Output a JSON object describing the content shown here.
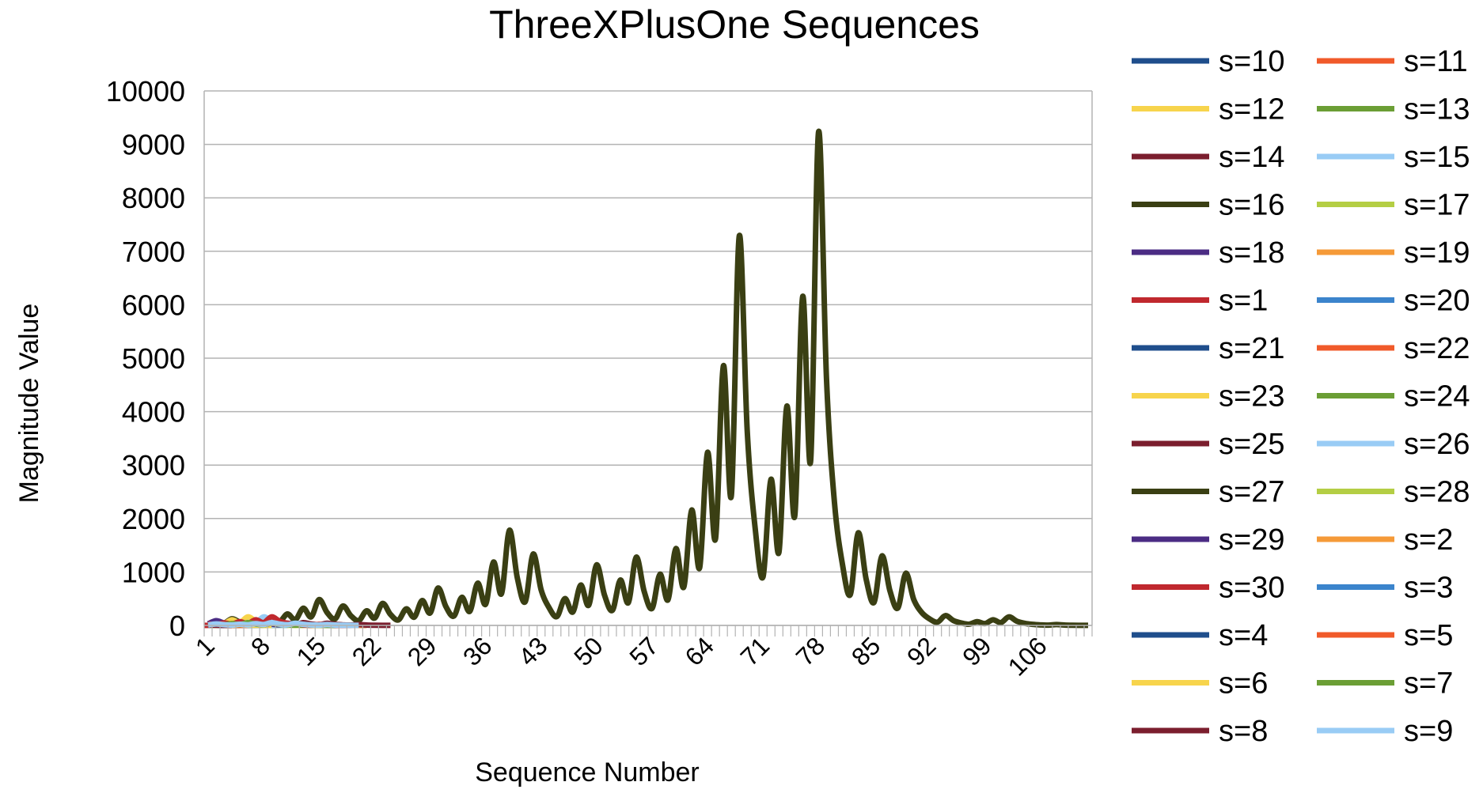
{
  "chart_data": {
    "type": "line",
    "title": "ThreeXPlusOne Sequences",
    "xlabel": "Sequence Number",
    "ylabel": "Magnitude Value",
    "ylim": [
      0,
      10000
    ],
    "yticks": [
      0,
      1000,
      2000,
      3000,
      4000,
      5000,
      6000,
      7000,
      8000,
      9000,
      10000
    ],
    "xticks": [
      "1",
      "8",
      "15",
      "22",
      "29",
      "36",
      "43",
      "50",
      "57",
      "64",
      "71",
      "78",
      "85",
      "92",
      "99",
      "106"
    ],
    "x_count": 112,
    "grid": true,
    "legend_position": "right",
    "series": [
      {
        "name": "s=10",
        "color": "#1f4e8c",
        "values": [
          10,
          5,
          16,
          8,
          4,
          2,
          1
        ]
      },
      {
        "name": "s=11",
        "color": "#f05a2a",
        "values": [
          11,
          34,
          17,
          52,
          26,
          13,
          40,
          20,
          10,
          5,
          16,
          8,
          4,
          2,
          1
        ]
      },
      {
        "name": "s=12",
        "color": "#f7d44c",
        "values": [
          12,
          6,
          3,
          10,
          5,
          16,
          8,
          4,
          2,
          1
        ]
      },
      {
        "name": "s=13",
        "color": "#6b9e35",
        "values": [
          13,
          40,
          20,
          10,
          5,
          16,
          8,
          4,
          2,
          1
        ]
      },
      {
        "name": "s=14",
        "color": "#7b1e2e",
        "values": [
          14,
          7,
          22,
          11,
          34,
          17,
          52,
          26,
          13,
          40,
          20,
          10,
          5,
          16,
          8,
          4,
          2,
          1
        ]
      },
      {
        "name": "s=15",
        "color": "#99ccf5",
        "values": [
          15,
          46,
          23,
          70,
          35,
          106,
          53,
          160,
          80,
          40,
          20,
          10,
          5,
          16,
          8,
          4,
          2,
          1
        ]
      },
      {
        "name": "s=16",
        "color": "#3a3f13",
        "values": [
          16,
          8,
          4,
          2,
          1
        ]
      },
      {
        "name": "s=17",
        "color": "#b4ce44",
        "values": [
          17,
          52,
          26,
          13,
          40,
          20,
          10,
          5,
          16,
          8,
          4,
          2,
          1
        ]
      },
      {
        "name": "s=18",
        "color": "#4b2c84",
        "values": [
          18,
          9,
          28,
          14,
          7,
          22,
          11,
          34,
          17,
          52,
          26,
          13,
          40,
          20,
          10,
          5,
          16,
          8,
          4,
          2,
          1
        ]
      },
      {
        "name": "s=19",
        "color": "#f59a38",
        "values": [
          19,
          58,
          29,
          88,
          44,
          22,
          11,
          34,
          17,
          52,
          26,
          13,
          40,
          20,
          10,
          5,
          16,
          8,
          4,
          2,
          1
        ]
      },
      {
        "name": "s=1",
        "color": "#c0282e",
        "values": [
          1
        ]
      },
      {
        "name": "s=20",
        "color": "#3b84cc",
        "values": [
          20,
          10,
          5,
          16,
          8,
          4,
          2,
          1
        ]
      },
      {
        "name": "s=21",
        "color": "#1f4e8c",
        "values": [
          21,
          64,
          32,
          16,
          8,
          4,
          2,
          1
        ]
      },
      {
        "name": "s=22",
        "color": "#f05a2a",
        "values": [
          22,
          11,
          34,
          17,
          52,
          26,
          13,
          40,
          20,
          10,
          5,
          16,
          8,
          4,
          2,
          1
        ]
      },
      {
        "name": "s=23",
        "color": "#f7d44c",
        "values": [
          23,
          70,
          35,
          106,
          53,
          160,
          80,
          40,
          20,
          10,
          5,
          16,
          8,
          4,
          2,
          1
        ]
      },
      {
        "name": "s=24",
        "color": "#6b9e35",
        "values": [
          24,
          12,
          6,
          3,
          10,
          5,
          16,
          8,
          4,
          2,
          1
        ]
      },
      {
        "name": "s=25",
        "color": "#7b1e2e",
        "values": [
          25,
          76,
          38,
          19,
          58,
          29,
          88,
          44,
          22,
          11,
          34,
          17,
          52,
          26,
          13,
          40,
          20,
          10,
          5,
          16,
          8,
          4,
          2,
          1
        ]
      },
      {
        "name": "s=26",
        "color": "#99ccf5",
        "values": [
          26,
          13,
          40,
          20,
          10,
          5,
          16,
          8,
          4,
          2,
          1
        ]
      },
      {
        "name": "s=27",
        "color": "#3a3f13",
        "values": [
          27,
          82,
          41,
          124,
          62,
          31,
          94,
          47,
          142,
          71,
          214,
          107,
          322,
          161,
          484,
          242,
          121,
          364,
          182,
          91,
          274,
          137,
          412,
          206,
          103,
          310,
          155,
          466,
          233,
          700,
          350,
          175,
          526,
          263,
          790,
          395,
          1186,
          593,
          1780,
          890,
          445,
          1336,
          668,
          334,
          167,
          502,
          251,
          754,
          377,
          1132,
          566,
          283,
          850,
          425,
          1276,
          638,
          319,
          958,
          479,
          1438,
          719,
          2158,
          1079,
          3238,
          1619,
          4858,
          2429,
          7288,
          3644,
          1822,
          911,
          2734,
          1367,
          4102,
          2051,
          6154,
          3077,
          9232,
          4616,
          2308,
          1154,
          577,
          1732,
          866,
          433,
          1300,
          650,
          325,
          976,
          488,
          244,
          122,
          61,
          184,
          92,
          46,
          23,
          70,
          35,
          106,
          53,
          160,
          80,
          40,
          20,
          10,
          5,
          16,
          8,
          4,
          2,
          1
        ]
      },
      {
        "name": "s=28",
        "color": "#b4ce44",
        "values": [
          28,
          14,
          7,
          22,
          11,
          34,
          17,
          52,
          26,
          13,
          40,
          20,
          10,
          5,
          16,
          8,
          4,
          2,
          1
        ]
      },
      {
        "name": "s=29",
        "color": "#4b2c84",
        "values": [
          29,
          88,
          44,
          22,
          11,
          34,
          17,
          52,
          26,
          13,
          40,
          20,
          10,
          5,
          16,
          8,
          4,
          2,
          1
        ]
      },
      {
        "name": "s=2",
        "color": "#f59a38",
        "values": [
          2,
          1
        ]
      },
      {
        "name": "s=30",
        "color": "#c0282e",
        "values": [
          30,
          15,
          46,
          23,
          70,
          35,
          106,
          53,
          160,
          80,
          40,
          20,
          10,
          5,
          16,
          8,
          4,
          2,
          1
        ]
      },
      {
        "name": "s=3",
        "color": "#3b84cc",
        "values": [
          3,
          10,
          5,
          16,
          8,
          4,
          2,
          1
        ]
      },
      {
        "name": "s=4",
        "color": "#1f4e8c",
        "values": [
          4,
          2,
          1
        ]
      },
      {
        "name": "s=5",
        "color": "#f05a2a",
        "values": [
          5,
          16,
          8,
          4,
          2,
          1
        ]
      },
      {
        "name": "s=6",
        "color": "#f7d44c",
        "values": [
          6,
          3,
          10,
          5,
          16,
          8,
          4,
          2,
          1
        ]
      },
      {
        "name": "s=7",
        "color": "#6b9e35",
        "values": [
          7,
          22,
          11,
          34,
          17,
          52,
          26,
          13,
          40,
          20,
          10,
          5,
          16,
          8,
          4,
          2,
          1
        ]
      },
      {
        "name": "s=8",
        "color": "#7b1e2e",
        "values": [
          8,
          4,
          2,
          1
        ]
      },
      {
        "name": "s=9",
        "color": "#99ccf5",
        "values": [
          9,
          28,
          14,
          7,
          22,
          11,
          34,
          17,
          52,
          26,
          13,
          40,
          20,
          10,
          5,
          16,
          8,
          4,
          2,
          1
        ]
      }
    ]
  }
}
